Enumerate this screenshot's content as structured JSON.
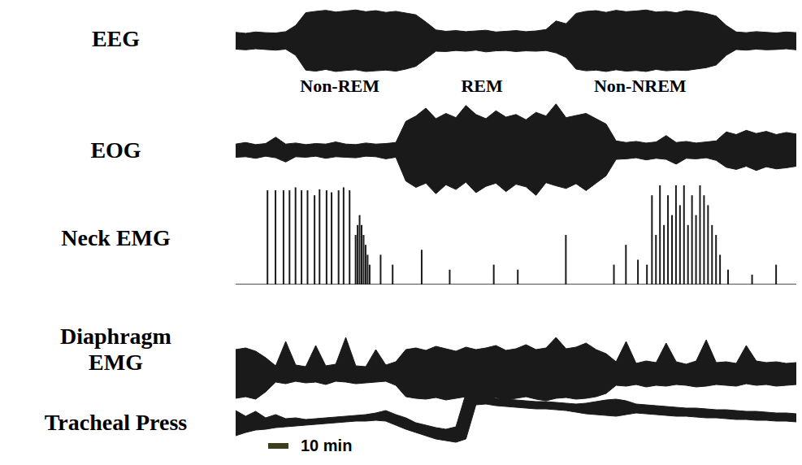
{
  "chart_data": [
    {
      "type": "band",
      "title": "EEG",
      "color": "#1a1a1a",
      "tick_labels": false,
      "xlim": [
        0,
        280
      ],
      "ylim": [
        -16,
        10
      ],
      "x": [
        0,
        5,
        10,
        15,
        20,
        25,
        30,
        35,
        40,
        45,
        50,
        55,
        60,
        65,
        70,
        75,
        80,
        85,
        90,
        95,
        100,
        105,
        110,
        115,
        120,
        125,
        130,
        135,
        140,
        145,
        150,
        155,
        160,
        165,
        170,
        175,
        180,
        185,
        190,
        195,
        200,
        205,
        210,
        215,
        220,
        225,
        230,
        235,
        240,
        245,
        250,
        255,
        260,
        265,
        270,
        275,
        280
      ],
      "upper": [
        2.5,
        2.2,
        2.6,
        2.4,
        2.3,
        2.7,
        4.5,
        8.2,
        8.6,
        8.9,
        8.4,
        8.7,
        9.0,
        8.5,
        8.8,
        8.3,
        8.6,
        8.1,
        7.6,
        5.5,
        3.2,
        2.8,
        3.0,
        2.7,
        2.9,
        3.1,
        2.6,
        2.8,
        3.0,
        2.7,
        2.9,
        3.3,
        5.8,
        5.0,
        8.0,
        8.6,
        8.8,
        8.3,
        8.9,
        8.5,
        8.7,
        9.0,
        8.4,
        8.6,
        8.2,
        8.8,
        8.5,
        8.0,
        7.2,
        4.5,
        2.6,
        2.4,
        2.7,
        2.5,
        2.3,
        2.6,
        2.4
      ],
      "lower": [
        -2.4,
        -2.6,
        -2.3,
        -2.5,
        -2.7,
        -2.4,
        -4.2,
        -8.5,
        -8.8,
        -8.3,
        -8.9,
        -8.6,
        -8.4,
        -8.9,
        -8.7,
        -8.5,
        -8.8,
        -8.2,
        -7.4,
        -5.2,
        -3.0,
        -3.1,
        -2.8,
        -3.0,
        -2.7,
        -3.2,
        -2.9,
        -2.8,
        -3.1,
        -2.9,
        -3.0,
        -2.8,
        -3.5,
        -4.8,
        -8.2,
        -8.7,
        -8.5,
        -8.9,
        -8.4,
        -8.8,
        -8.6,
        -8.9,
        -8.3,
        -8.7,
        -8.5,
        -8.6,
        -8.2,
        -7.8,
        -7.0,
        -4.2,
        -2.5,
        -2.7,
        -2.4,
        -2.6,
        -2.5,
        -2.3,
        -2.6
      ],
      "annotations": [
        {
          "x": 52,
          "text": "Non-REM"
        },
        {
          "x": 123,
          "text": "REM"
        },
        {
          "x": 202,
          "text": "Non-NREM"
        }
      ]
    },
    {
      "type": "band",
      "title": "EOG",
      "color": "#1a1a1a",
      "tick_labels": false,
      "xlim": [
        0,
        280
      ],
      "ylim": [
        -10,
        10
      ],
      "x": [
        0,
        5,
        10,
        15,
        20,
        25,
        30,
        35,
        40,
        45,
        50,
        55,
        60,
        65,
        70,
        75,
        80,
        85,
        90,
        95,
        100,
        105,
        110,
        115,
        120,
        125,
        130,
        135,
        140,
        145,
        150,
        155,
        160,
        165,
        170,
        175,
        180,
        185,
        190,
        195,
        200,
        205,
        210,
        215,
        220,
        225,
        230,
        235,
        240,
        245,
        250,
        255,
        260,
        265,
        270,
        275,
        280
      ],
      "upper": [
        1.2,
        1.5,
        1.1,
        1.3,
        2.5,
        1.2,
        1.4,
        1.1,
        1.3,
        1.2,
        1.6,
        1.2,
        1.1,
        1.4,
        1.2,
        1.3,
        1.5,
        5.5,
        6.5,
        8.0,
        6.0,
        7.0,
        6.2,
        8.5,
        6.8,
        6.0,
        7.5,
        6.3,
        6.8,
        5.8,
        7.2,
        6.5,
        8.8,
        6.2,
        6.6,
        7.0,
        6.0,
        5.0,
        1.8,
        1.5,
        1.7,
        1.4,
        1.6,
        2.8,
        1.5,
        1.7,
        1.4,
        1.6,
        1.8,
        3.5,
        3.0,
        3.8,
        3.2,
        3.6,
        3.0,
        3.4,
        3.1
      ],
      "lower": [
        -1.3,
        -1.2,
        -1.5,
        -1.1,
        -1.4,
        -2.2,
        -1.2,
        -1.3,
        -1.1,
        -1.5,
        -1.2,
        -1.3,
        -1.4,
        -1.1,
        -1.2,
        -1.6,
        -1.3,
        -5.8,
        -7.0,
        -6.2,
        -8.2,
        -6.5,
        -7.4,
        -6.0,
        -8.0,
        -6.8,
        -6.2,
        -7.8,
        -6.4,
        -6.9,
        -8.5,
        -6.1,
        -6.7,
        -7.2,
        -6.3,
        -7.6,
        -6.2,
        -4.8,
        -1.7,
        -1.6,
        -1.4,
        -1.8,
        -1.5,
        -1.7,
        -2.6,
        -1.5,
        -1.6,
        -1.4,
        -1.9,
        -3.2,
        -3.6,
        -3.0,
        -3.8,
        -3.1,
        -3.5,
        -3.3,
        -3.0
      ]
    },
    {
      "type": "bar",
      "title": "Neck EMG",
      "color": "#1a1a1a",
      "tick_labels": false,
      "xlim": [
        0,
        280
      ],
      "ylim": [
        0,
        10
      ],
      "x": [
        16,
        20,
        24,
        27,
        30,
        33,
        36,
        39.5,
        42,
        45.5,
        48,
        51.5,
        54,
        57,
        60,
        61,
        62,
        63,
        64,
        65,
        66,
        67,
        72.5,
        78.5,
        93,
        107,
        129,
        141,
        165,
        189,
        195,
        201,
        205.5,
        208,
        210,
        212,
        214,
        216,
        218,
        220,
        222,
        224,
        226,
        228,
        230,
        232,
        234,
        236,
        238,
        240,
        242,
        246,
        258,
        270
      ],
      "values": [
        9.5,
        9.5,
        9.5,
        9.5,
        9.8,
        9.5,
        9.5,
        9,
        9.6,
        9.5,
        9.3,
        9.5,
        9.8,
        9.5,
        5,
        6,
        7,
        6,
        5,
        4,
        3,
        2,
        3,
        2,
        3.5,
        1.5,
        2,
        1.5,
        5,
        2,
        4,
        2.5,
        2,
        9,
        5,
        10,
        6,
        9,
        7,
        10,
        8,
        10,
        6,
        9,
        7,
        10,
        9,
        8,
        6,
        5,
        3,
        1.5,
        1,
        2
      ]
    },
    {
      "type": "band",
      "title": "Diaphragm EMG",
      "color": "#1a1a1a",
      "tick_labels": false,
      "xlim": [
        0,
        280
      ],
      "ylim": [
        -6,
        6
      ],
      "x": [
        0,
        5,
        10,
        15,
        20,
        25,
        30,
        35,
        40,
        45,
        50,
        55,
        60,
        65,
        70,
        75,
        80,
        85,
        90,
        95,
        100,
        105,
        110,
        115,
        120,
        125,
        130,
        135,
        140,
        145,
        150,
        155,
        160,
        165,
        170,
        175,
        180,
        185,
        190,
        195,
        200,
        205,
        210,
        215,
        220,
        225,
        230,
        235,
        240,
        245,
        250,
        255,
        260,
        265,
        270,
        275,
        280
      ],
      "upper": [
        3.0,
        3.2,
        2.8,
        2.0,
        1.0,
        4.0,
        1.1,
        0.9,
        3.5,
        1.0,
        1.2,
        4.5,
        1.0,
        0.9,
        3.0,
        1.1,
        1.5,
        3.0,
        3.2,
        2.9,
        3.4,
        3.1,
        2.8,
        3.3,
        3.0,
        3.2,
        3.5,
        2.9,
        3.1,
        3.6,
        3.0,
        3.2,
        4.5,
        3.1,
        3.3,
        3.8,
        3.0,
        2.5,
        1.5,
        4.0,
        1.3,
        1.6,
        1.4,
        3.8,
        1.5,
        1.2,
        1.6,
        4.2,
        1.4,
        1.5,
        1.3,
        3.5,
        1.6,
        1.4,
        1.5,
        1.3,
        1.4
      ],
      "lower": [
        -3.0,
        -2.8,
        -3.1,
        -2.2,
        -1.0,
        -1.2,
        -0.9,
        -1.1,
        -1.0,
        -1.3,
        -0.9,
        -1.0,
        -1.2,
        -1.1,
        -1.0,
        -0.9,
        -1.4,
        -2.8,
        -3.0,
        -3.1,
        -2.9,
        -3.2,
        -3.0,
        -2.8,
        -3.1,
        -3.0,
        -2.9,
        -3.2,
        -3.0,
        -2.8,
        -3.1,
        -3.3,
        -3.0,
        -2.9,
        -3.1,
        -3.0,
        -2.8,
        -2.4,
        -1.4,
        -1.5,
        -1.3,
        -1.6,
        -1.4,
        -1.5,
        -1.3,
        -1.4,
        -1.6,
        -1.5,
        -1.3,
        -1.4,
        -1.5,
        -1.2,
        -1.4,
        -1.3,
        -1.5,
        -1.4,
        -1.3
      ]
    },
    {
      "type": "band",
      "title": "Tracheal Press",
      "color": "#1a1a1a",
      "tick_labels": false,
      "xlim": [
        0,
        280
      ],
      "ylim": [
        -5,
        5
      ],
      "x": [
        0,
        5,
        10,
        15,
        20,
        25,
        30,
        35,
        40,
        45,
        50,
        55,
        60,
        65,
        70,
        75,
        80,
        85,
        90,
        95,
        100,
        105,
        110,
        115,
        120,
        125,
        130,
        135,
        140,
        145,
        150,
        155,
        160,
        165,
        170,
        175,
        180,
        185,
        190,
        195,
        200,
        205,
        210,
        215,
        220,
        225,
        230,
        235,
        240,
        245,
        250,
        255,
        260,
        265,
        270,
        275,
        280
      ],
      "upper": [
        1.5,
        0.8,
        1.4,
        0.6,
        1.0,
        0.5,
        0.6,
        0.4,
        0.5,
        0.6,
        0.7,
        0.8,
        0.9,
        1.0,
        1.2,
        1.5,
        1.0,
        0.6,
        0.0,
        -0.3,
        -0.6,
        -0.8,
        -0.5,
        3.6,
        3.3,
        3.2,
        3.0,
        2.9,
        2.8,
        2.7,
        2.6,
        2.6,
        2.5,
        2.4,
        2.3,
        2.4,
        2.6,
        2.8,
        2.9,
        2.7,
        2.3,
        2.2,
        2.1,
        2.0,
        1.9,
        1.8,
        1.8,
        1.7,
        1.6,
        1.6,
        1.5,
        1.4,
        1.4,
        1.3,
        1.2,
        1.2,
        1.1
      ],
      "lower": [
        -1.6,
        -1.2,
        -0.9,
        -0.8,
        -0.6,
        -0.5,
        -0.4,
        -0.3,
        -0.2,
        -0.1,
        0.0,
        0.1,
        0.2,
        0.2,
        0.3,
        0.2,
        -0.3,
        -0.8,
        -1.2,
        -1.6,
        -2.0,
        -2.2,
        -2.4,
        -2.0,
        2.2,
        2.3,
        2.1,
        2.0,
        1.9,
        1.8,
        1.7,
        1.7,
        1.6,
        1.5,
        1.3,
        1.1,
        1.0,
        0.9,
        0.8,
        1.0,
        1.2,
        1.1,
        1.0,
        0.9,
        0.8,
        0.8,
        0.7,
        0.6,
        0.6,
        0.5,
        0.4,
        0.4,
        0.3,
        0.3,
        0.2,
        0.2,
        0.1
      ],
      "scale_bar": {
        "length": 10,
        "label": "10 min",
        "color": "#3d3d1f"
      }
    }
  ]
}
